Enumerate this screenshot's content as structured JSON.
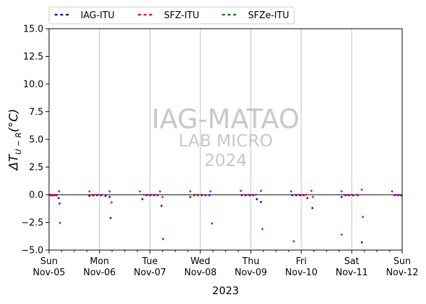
{
  "chart_data": {
    "type": "scatter",
    "xlabel": "2023",
    "ylabel_main": "ΔT",
    "ylabel_sub": "U − R",
    "ylabel_unit": "(°C)",
    "ylim": [
      -5.0,
      15.0
    ],
    "yticks": [
      "−5.0",
      "−2.5",
      "0.0",
      "2.5",
      "5.0",
      "7.5",
      "10.0",
      "12.5",
      "15.0"
    ],
    "ytick_values": [
      -5.0,
      -2.5,
      0.0,
      2.5,
      5.0,
      7.5,
      10.0,
      12.5,
      15.0
    ],
    "xlim_days": [
      0,
      7
    ],
    "xtick_labels": [
      [
        "Sun",
        "Nov-05"
      ],
      [
        "Mon",
        "Nov-06"
      ],
      [
        "Tue",
        "Nov-07"
      ],
      [
        "Wed",
        "Nov-08"
      ],
      [
        "Thu",
        "Nov-09"
      ],
      [
        "Fri",
        "Nov-10"
      ],
      [
        "Sat",
        "Nov-11"
      ],
      [
        "Sun",
        "Nov-12"
      ]
    ],
    "grid": "vertical at day boundaries",
    "zero_line": true,
    "legend_placement": "above plot, horizontal",
    "watermark": [
      "IAG-MATAO",
      "LAB MICRO",
      "2024"
    ],
    "series": [
      {
        "name": "IAG-ITU",
        "color": "#0000ff",
        "points": [
          [
            0.03,
            -0.05
          ],
          [
            0.07,
            -0.05
          ],
          [
            0.11,
            -0.05
          ],
          [
            0.15,
            -0.05
          ],
          [
            0.19,
            -0.3
          ],
          [
            0.21,
            -0.8
          ],
          [
            0.8,
            -0.1
          ],
          [
            0.88,
            -0.05
          ],
          [
            0.95,
            -0.05
          ],
          [
            1.03,
            -0.05
          ],
          [
            1.12,
            -0.1
          ],
          [
            1.2,
            -0.2
          ],
          [
            1.22,
            -2.1
          ],
          [
            1.85,
            -0.4
          ],
          [
            1.93,
            -0.05
          ],
          [
            2.0,
            -0.05
          ],
          [
            2.08,
            -0.05
          ],
          [
            2.15,
            -0.05
          ],
          [
            2.23,
            -1.0
          ],
          [
            2.8,
            -0.2
          ],
          [
            2.88,
            -0.05
          ],
          [
            2.95,
            -0.05
          ],
          [
            3.03,
            -0.05
          ],
          [
            3.1,
            -0.05
          ],
          [
            3.18,
            -0.05
          ],
          [
            3.82,
            -0.05
          ],
          [
            3.9,
            -0.05
          ],
          [
            3.98,
            -0.05
          ],
          [
            4.05,
            -0.05
          ],
          [
            4.12,
            -0.4
          ],
          [
            4.2,
            -0.65
          ],
          [
            4.82,
            -0.05
          ],
          [
            4.9,
            -0.05
          ],
          [
            4.98,
            -0.05
          ],
          [
            5.05,
            -0.05
          ],
          [
            5.12,
            -0.3
          ],
          [
            5.22,
            -1.2
          ],
          [
            5.8,
            -0.2
          ],
          [
            5.88,
            -0.05
          ],
          [
            5.95,
            -0.05
          ],
          [
            6.03,
            -0.05
          ],
          [
            6.12,
            -0.05
          ],
          [
            6.2,
            -4.3
          ],
          [
            6.85,
            -0.05
          ],
          [
            6.92,
            -0.05
          ],
          [
            6.98,
            -0.05
          ]
        ]
      },
      {
        "name": "SFZ-ITU",
        "color": "#ff0000",
        "points": [
          [
            0.02,
            0.0
          ],
          [
            0.06,
            0.0
          ],
          [
            0.1,
            0.0
          ],
          [
            0.14,
            0.0
          ],
          [
            0.2,
            0.3
          ],
          [
            0.22,
            -2.55
          ],
          [
            0.8,
            0.3
          ],
          [
            0.85,
            0.0
          ],
          [
            0.9,
            0.0
          ],
          [
            0.97,
            0.0
          ],
          [
            1.05,
            0.0
          ],
          [
            1.2,
            0.3
          ],
          [
            1.24,
            -0.7
          ],
          [
            1.8,
            0.3
          ],
          [
            1.88,
            0.0
          ],
          [
            1.95,
            0.0
          ],
          [
            2.03,
            0.0
          ],
          [
            2.1,
            0.0
          ],
          [
            2.2,
            0.3
          ],
          [
            2.25,
            -0.2
          ],
          [
            2.26,
            -4.0
          ],
          [
            2.8,
            0.3
          ],
          [
            2.88,
            0.0
          ],
          [
            2.95,
            0.0
          ],
          [
            3.03,
            0.0
          ],
          [
            3.2,
            0.3
          ],
          [
            3.23,
            -2.6
          ],
          [
            3.8,
            0.35
          ],
          [
            3.88,
            0.0
          ],
          [
            3.95,
            0.0
          ],
          [
            4.03,
            0.0
          ],
          [
            4.1,
            0.0
          ],
          [
            4.2,
            0.35
          ],
          [
            4.23,
            -3.1
          ],
          [
            4.8,
            0.3
          ],
          [
            4.88,
            0.0
          ],
          [
            4.95,
            0.0
          ],
          [
            5.03,
            0.0
          ],
          [
            5.1,
            0.0
          ],
          [
            5.2,
            0.35
          ],
          [
            5.23,
            -0.2
          ],
          [
            4.85,
            -4.2
          ],
          [
            5.8,
            0.3
          ],
          [
            5.85,
            0.0
          ],
          [
            5.92,
            0.0
          ],
          [
            6.0,
            0.0
          ],
          [
            6.1,
            0.0
          ],
          [
            6.2,
            0.45
          ],
          [
            6.22,
            -2.0
          ],
          [
            5.8,
            -3.6
          ],
          [
            6.8,
            0.3
          ],
          [
            6.88,
            0.0
          ],
          [
            6.95,
            0.0
          ]
        ]
      },
      {
        "name": "SFZe-ITU",
        "color": "#008000",
        "points": []
      }
    ]
  }
}
